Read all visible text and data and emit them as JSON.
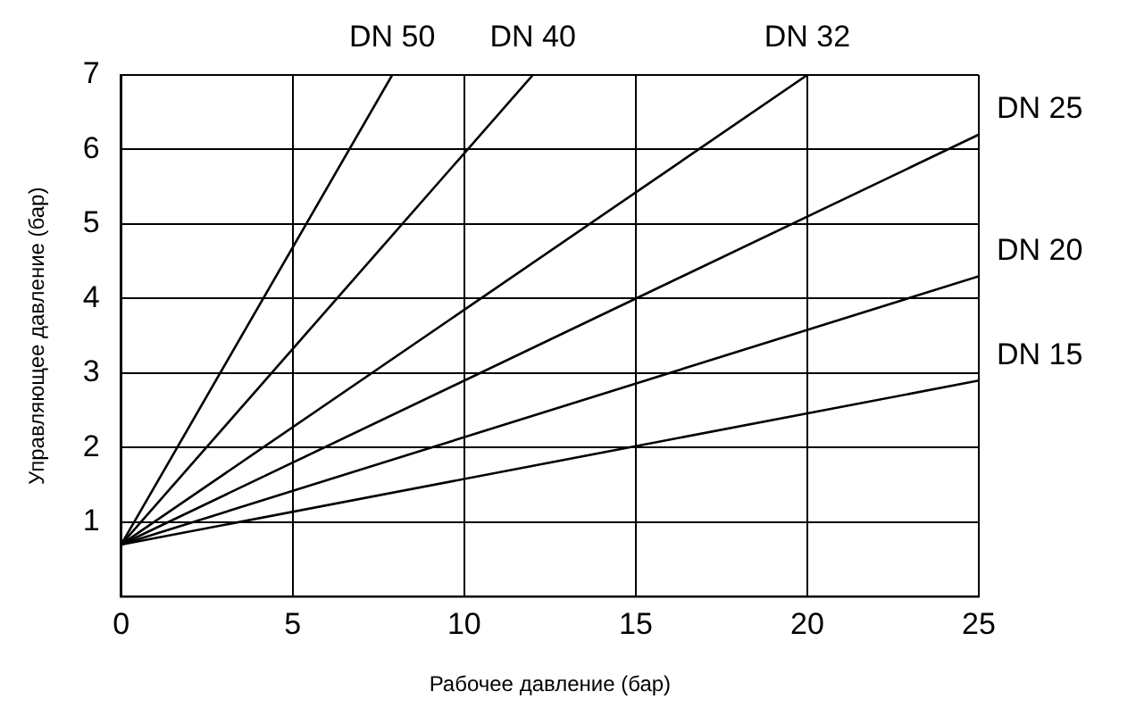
{
  "chart_data": {
    "type": "line",
    "xlabel": "Рабочее давление (бар)",
    "ylabel": "Управляющее давление (бар)",
    "xlim": [
      0,
      25
    ],
    "xticks": [
      0,
      5,
      10,
      15,
      20,
      25
    ],
    "ylim": [
      0,
      7
    ],
    "yticks": [
      1,
      2,
      3,
      4,
      5,
      6,
      7
    ],
    "grid": true,
    "legend": false,
    "marker": "none",
    "line_style": "solid",
    "series": [
      {
        "name": "DN 50",
        "color": "#000000",
        "x": [
          0,
          7.9
        ],
        "values": [
          0.7,
          7
        ]
      },
      {
        "name": "DN 40",
        "color": "#000000",
        "x": [
          0,
          12
        ],
        "values": [
          0.7,
          7
        ]
      },
      {
        "name": "DN 32",
        "color": "#000000",
        "x": [
          0,
          20
        ],
        "values": [
          0.7,
          7
        ]
      },
      {
        "name": "DN 25",
        "color": "#000000",
        "x": [
          0,
          25
        ],
        "values": [
          0.7,
          6.2
        ]
      },
      {
        "name": "DN 20",
        "color": "#000000",
        "x": [
          0,
          25
        ],
        "values": [
          0.7,
          4.3
        ]
      },
      {
        "name": "DN 15",
        "color": "#000000",
        "x": [
          0,
          25
        ],
        "values": [
          0.7,
          2.9
        ]
      }
    ]
  }
}
